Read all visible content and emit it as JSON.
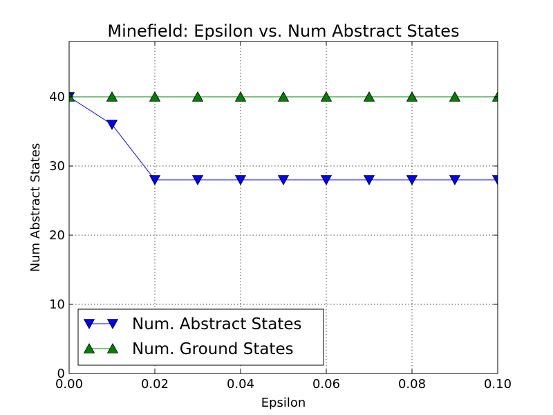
{
  "chart_data": {
    "type": "line",
    "title": "Minefield: Epsilon vs. Num Abstract States",
    "xlabel": "Epsilon",
    "ylabel": "Num Abstract States",
    "xlim": [
      0.0,
      0.1
    ],
    "ylim": [
      0,
      48
    ],
    "grid": true,
    "legend_position": "lower-left",
    "x": [
      0.0,
      0.01,
      0.02,
      0.03,
      0.04,
      0.05,
      0.06,
      0.07,
      0.08,
      0.09,
      0.1
    ],
    "x_tick_values": [
      0.0,
      0.02,
      0.04,
      0.06,
      0.08,
      0.1
    ],
    "x_tick_labels": [
      "0.00",
      "0.02",
      "0.04",
      "0.06",
      "0.08",
      "0.10"
    ],
    "y_tick_values": [
      0,
      10,
      20,
      30,
      40
    ],
    "y_tick_labels": [
      "0",
      "10",
      "20",
      "30",
      "40"
    ],
    "series": [
      {
        "name": "Num. Abstract States",
        "color": "#0000ff",
        "marker": "triangle-down",
        "values": [
          40,
          36,
          28,
          28,
          28,
          28,
          28,
          28,
          28,
          28,
          28
        ]
      },
      {
        "name": "Num. Ground States",
        "color": "#008000",
        "marker": "triangle-up",
        "values": [
          40,
          40,
          40,
          40,
          40,
          40,
          40,
          40,
          40,
          40,
          40
        ]
      }
    ]
  }
}
